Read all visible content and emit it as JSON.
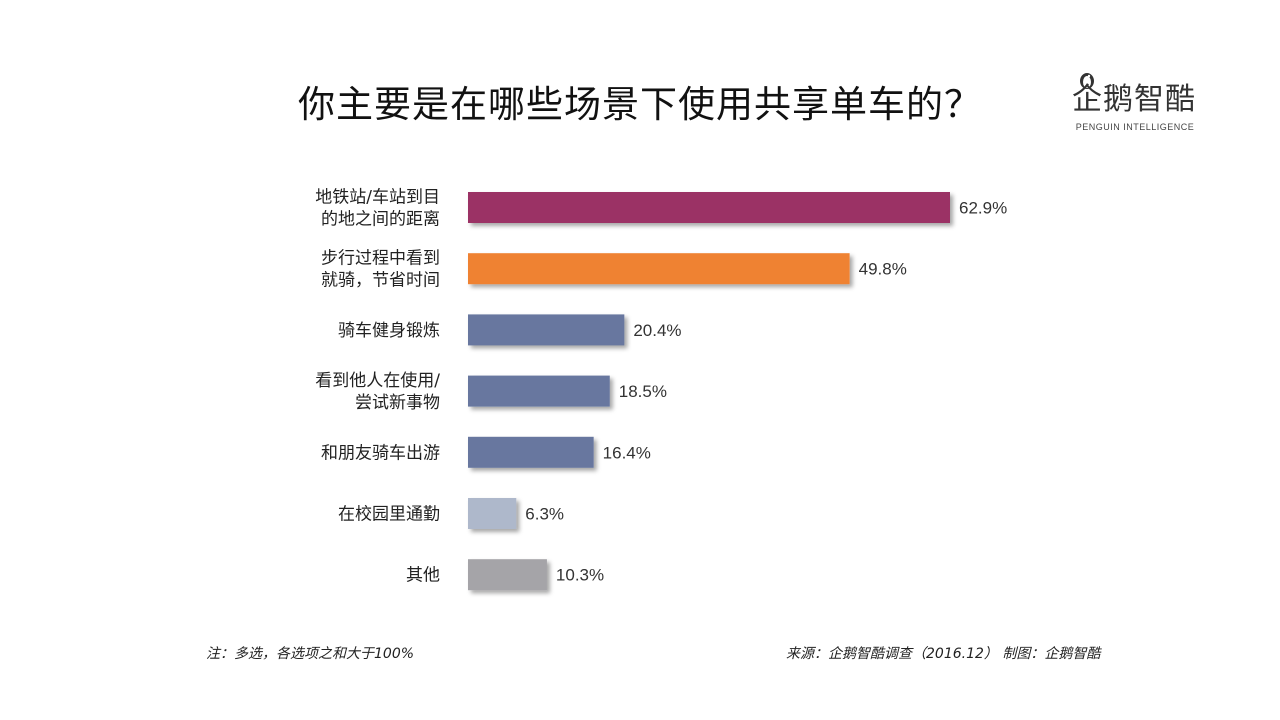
{
  "title": "你主要是在哪些场景下使用共享单车的？",
  "logo": {
    "text": "企鹅智酷",
    "subtext": "PENGUIN INTELLIGENCE"
  },
  "chart_data": {
    "type": "bar",
    "orientation": "horizontal",
    "categories": [
      [
        "地铁站/车站到目",
        "的地之间的距离"
      ],
      [
        "步行过程中看到",
        "就骑，节省时间"
      ],
      [
        "骑车健身锻炼"
      ],
      [
        "看到他人在使用/",
        "尝试新事物"
      ],
      [
        "和朋友骑车出游"
      ],
      [
        "在校园里通勤"
      ],
      [
        "其他"
      ]
    ],
    "values": [
      62.9,
      49.8,
      20.4,
      18.5,
      16.4,
      6.3,
      10.3
    ],
    "value_labels": [
      "62.9%",
      "49.8%",
      "20.4%",
      "18.5%",
      "16.4%",
      "6.3%",
      "10.3%"
    ],
    "colors": [
      "#9b3265",
      "#ef8232",
      "#67779f",
      "#67779f",
      "#67779f",
      "#aeb8cb",
      "#a5a4a8"
    ],
    "unit": "%",
    "xlim": [
      0,
      62.9
    ],
    "grid": false,
    "legend": "none"
  },
  "footer": {
    "note": "注：多选，各选项之和大于100%",
    "source": "来源：企鹅智酷调查（2016.12） 制图：企鹅智酷"
  }
}
